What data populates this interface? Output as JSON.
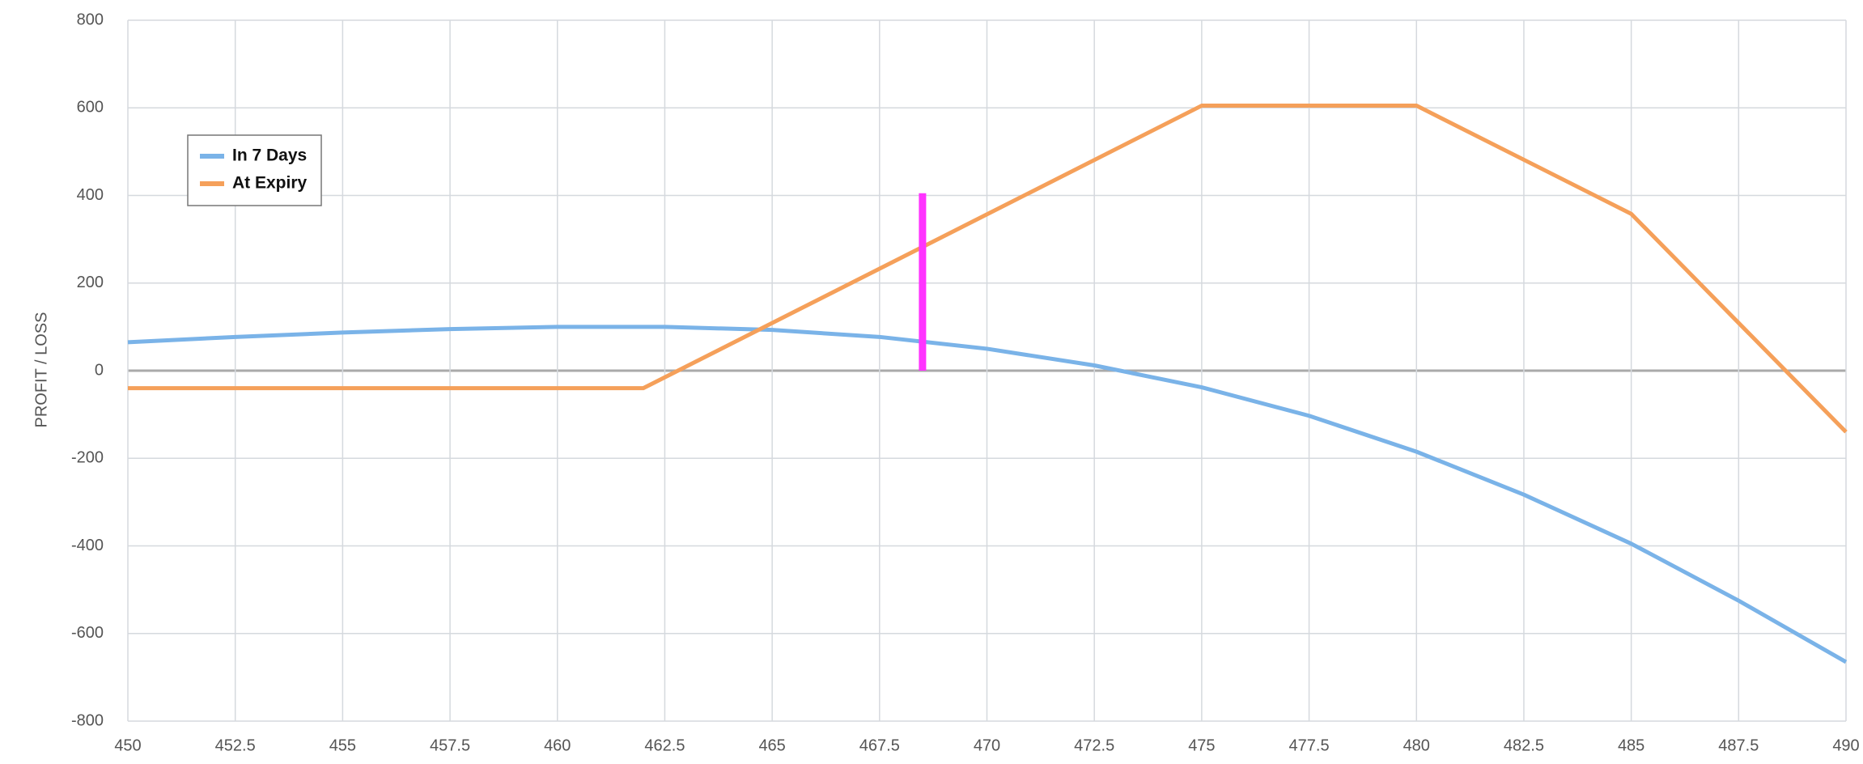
{
  "chart_data": {
    "type": "line",
    "y_label": "PROFIT / LOSS",
    "xlim": [
      450,
      490
    ],
    "xticks": [
      450,
      452.5,
      455,
      457.5,
      460,
      462.5,
      465,
      467.5,
      470,
      472.5,
      475,
      477.5,
      480,
      482.5,
      485,
      487.5,
      490
    ],
    "ylim": [
      -800,
      800
    ],
    "yticks": [
      -800,
      -600,
      -400,
      -200,
      0,
      200,
      400,
      600,
      800
    ],
    "grid": true,
    "legend": "upper left",
    "series": [
      {
        "name": "In 7 Days",
        "color": "#7ab3e8",
        "x": [
          450,
          452.5,
          455,
          457.5,
          460,
          462.5,
          465,
          467.5,
          470,
          472.5,
          475,
          477.5,
          480,
          482.5,
          485,
          487.5,
          490
        ],
        "values": [
          65,
          77,
          87,
          95,
          100,
          100,
          93,
          77,
          50,
          12,
          -38,
          -103,
          -185,
          -283,
          -395,
          -525,
          -665
        ]
      },
      {
        "name": "At Expiry",
        "color": "#f5a05a",
        "x": [
          450,
          462,
          475,
          480,
          485,
          490
        ],
        "values": [
          -40,
          -40,
          605,
          605,
          358,
          -140
        ]
      }
    ],
    "marker": {
      "x": 468.5,
      "y0": 0,
      "y1": 405,
      "color": "#ff33ff"
    }
  }
}
